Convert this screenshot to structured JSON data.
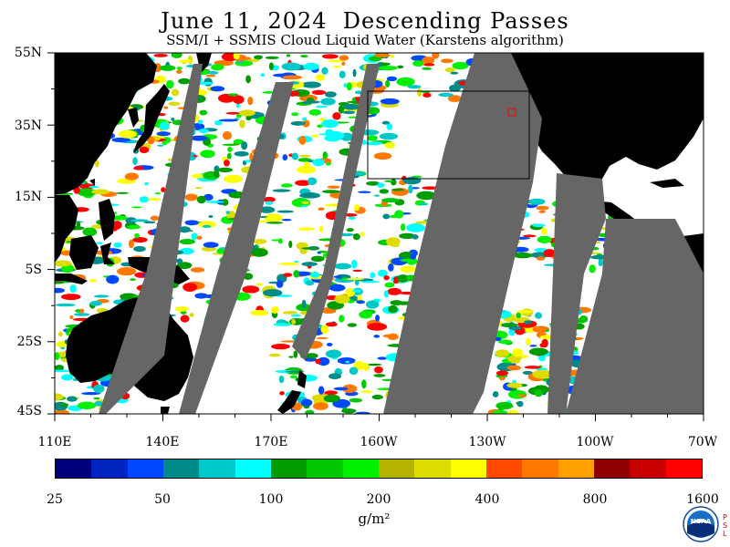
{
  "title": "June 11, 2024  Descending Passes",
  "subtitle": "SSM/I + SSMIS Cloud Liquid Water (Karstens algorithm)",
  "map": {
    "lat_labels": [
      "55N",
      "35N",
      "15N",
      "5S",
      "25S",
      "45S"
    ],
    "lon_labels": [
      "110E",
      "140E",
      "170E",
      "160W",
      "130W",
      "100W",
      "70W"
    ],
    "extent": {
      "lon_min": "110E",
      "lon_max": "70W",
      "lat_min": "45S",
      "lat_max": "55N"
    }
  },
  "colorbar": {
    "colors": [
      "#00007f",
      "#0024bf",
      "#0048ff",
      "#008b8b",
      "#00c8c8",
      "#00ffff",
      "#009b00",
      "#00c800",
      "#00f000",
      "#b4b400",
      "#dcdc00",
      "#ffff00",
      "#ff4800",
      "#ff7800",
      "#ffa000",
      "#900000",
      "#c80000",
      "#ff0000"
    ],
    "tick_labels": [
      "25",
      "50",
      "100",
      "200",
      "400",
      "800",
      "1600"
    ],
    "units": "g/m²"
  },
  "logo": {
    "text": "NOAA",
    "side_text": "PSL"
  },
  "colors": {
    "land": "#000000",
    "no_data": "#666666",
    "ocean_clear": "#ffffff"
  }
}
